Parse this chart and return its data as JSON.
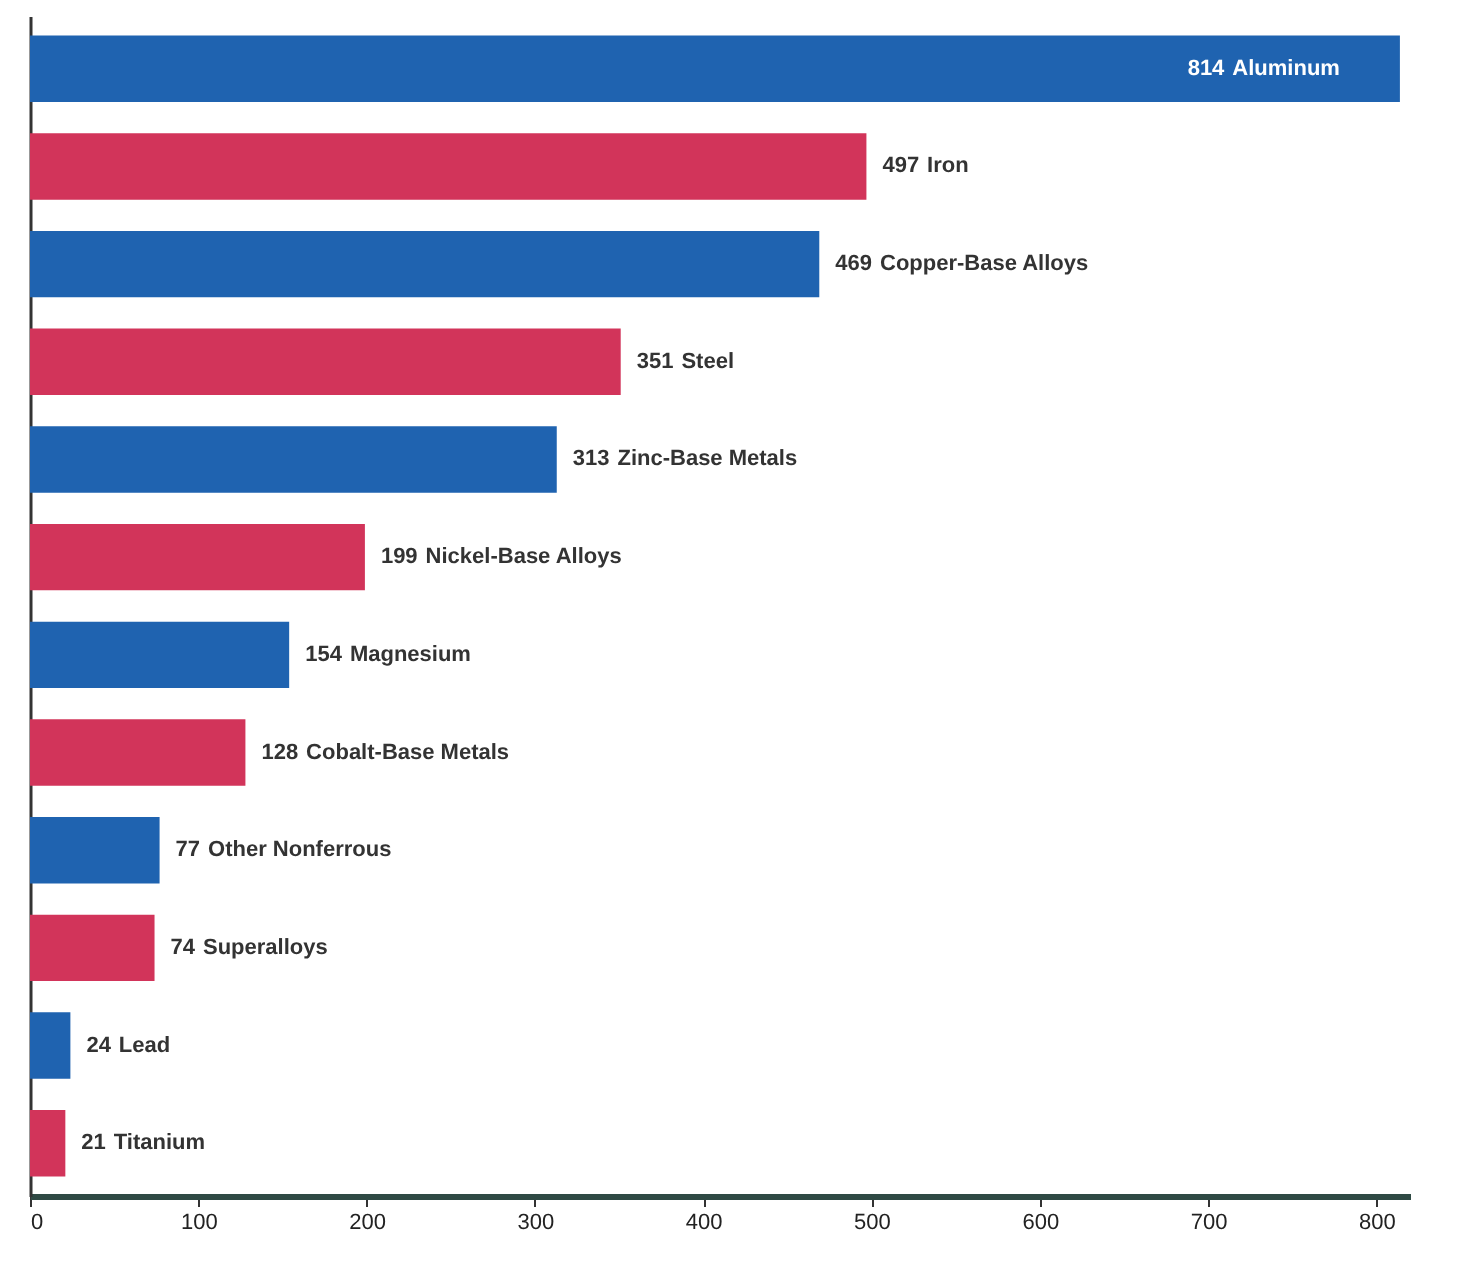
{
  "chart_data": {
    "type": "bar",
    "orientation": "horizontal",
    "categories": [
      "Aluminum",
      "Iron",
      "Copper-Base Alloys",
      "Steel",
      "Zinc-Base Metals",
      "Nickel-Base Alloys",
      "Magnesium",
      "Cobalt-Base Metals",
      "Other Nonferrous",
      "Superalloys",
      "Lead",
      "Titanium"
    ],
    "values": [
      814,
      497,
      469,
      351,
      313,
      199,
      154,
      128,
      77,
      74,
      24,
      21
    ],
    "colors": [
      "#1f63b0",
      "#d2345a",
      "#1f63b0",
      "#d2345a",
      "#1f63b0",
      "#d2345a",
      "#1f63b0",
      "#d2345a",
      "#1f63b0",
      "#d2345a",
      "#1f63b0",
      "#d2345a"
    ],
    "data_labels": true,
    "xlim": [
      0,
      820
    ],
    "xticks": [
      0,
      100,
      200,
      300,
      400,
      500,
      600,
      700,
      800
    ],
    "grid": false,
    "tick_labels": "x"
  }
}
